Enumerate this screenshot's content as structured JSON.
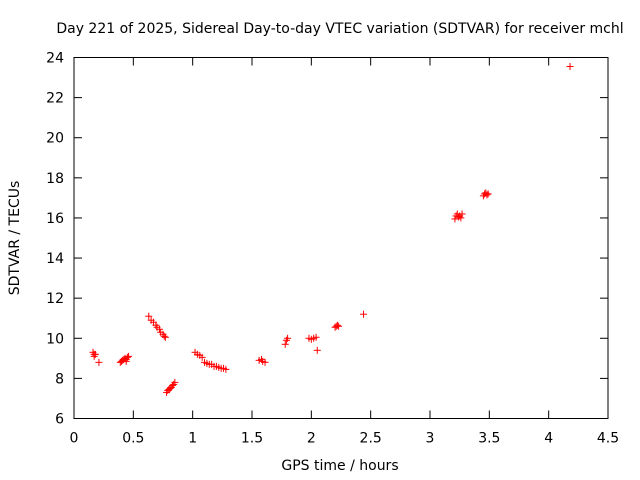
{
  "chart_data": {
    "type": "scatter",
    "title": "Day 221 of 2025, Sidereal Day-to-day VTEC variation (SDTVAR) for receiver mchl",
    "xlabel": "GPS time / hours",
    "ylabel": "SDTVAR / TECUs",
    "xlim": [
      0,
      4.5
    ],
    "ylim": [
      6,
      24
    ],
    "xticks": [
      0,
      0.5,
      1,
      1.5,
      2,
      2.5,
      3,
      3.5,
      4,
      4.5
    ],
    "xtick_labels": [
      "0",
      "0.5",
      "1",
      "1.5",
      "2",
      "2.5",
      "3",
      "3.5",
      "4",
      "4.5"
    ],
    "yticks": [
      6,
      8,
      10,
      12,
      14,
      16,
      18,
      20,
      22,
      24
    ],
    "ytick_labels": [
      "6",
      "8",
      "10",
      "12",
      "14",
      "16",
      "18",
      "20",
      "22",
      "24"
    ],
    "grid": false,
    "marker": "+",
    "marker_color": "#ff0000",
    "series": [
      {
        "name": "SDTVAR",
        "points": [
          [
            0.16,
            9.3
          ],
          [
            0.17,
            9.2
          ],
          [
            0.17,
            9.1
          ],
          [
            0.18,
            9.2
          ],
          [
            0.21,
            8.8
          ],
          [
            0.39,
            8.8
          ],
          [
            0.4,
            8.85
          ],
          [
            0.41,
            8.9
          ],
          [
            0.42,
            8.95
          ],
          [
            0.43,
            9.0
          ],
          [
            0.44,
            8.95
          ],
          [
            0.45,
            9.05
          ],
          [
            0.46,
            9.1
          ],
          [
            0.44,
            8.85
          ],
          [
            0.63,
            11.1
          ],
          [
            0.65,
            10.9
          ],
          [
            0.67,
            10.8
          ],
          [
            0.69,
            10.65
          ],
          [
            0.7,
            10.55
          ],
          [
            0.72,
            10.45
          ],
          [
            0.73,
            10.3
          ],
          [
            0.75,
            10.2
          ],
          [
            0.76,
            10.1
          ],
          [
            0.77,
            10.05
          ],
          [
            0.78,
            7.3
          ],
          [
            0.79,
            7.4
          ],
          [
            0.8,
            7.45
          ],
          [
            0.81,
            7.5
          ],
          [
            0.82,
            7.55
          ],
          [
            0.83,
            7.65
          ],
          [
            0.84,
            7.7
          ],
          [
            0.85,
            7.8
          ],
          [
            1.02,
            9.3
          ],
          [
            1.04,
            9.2
          ],
          [
            1.06,
            9.15
          ],
          [
            1.08,
            9.05
          ],
          [
            1.1,
            8.8
          ],
          [
            1.12,
            8.75
          ],
          [
            1.14,
            8.7
          ],
          [
            1.16,
            8.7
          ],
          [
            1.18,
            8.6
          ],
          [
            1.2,
            8.6
          ],
          [
            1.22,
            8.55
          ],
          [
            1.24,
            8.5
          ],
          [
            1.26,
            8.5
          ],
          [
            1.28,
            8.45
          ],
          [
            1.56,
            8.9
          ],
          [
            1.58,
            8.95
          ],
          [
            1.59,
            8.85
          ],
          [
            1.61,
            8.8
          ],
          [
            1.78,
            9.7
          ],
          [
            1.79,
            9.9
          ],
          [
            1.8,
            10.0
          ],
          [
            1.98,
            10.0
          ],
          [
            2.0,
            9.95
          ],
          [
            2.02,
            10.0
          ],
          [
            2.04,
            10.05
          ],
          [
            2.05,
            9.4
          ],
          [
            2.2,
            10.55
          ],
          [
            2.21,
            10.6
          ],
          [
            2.22,
            10.65
          ],
          [
            2.23,
            10.6
          ],
          [
            2.44,
            11.2
          ],
          [
            3.21,
            15.95
          ],
          [
            3.22,
            16.1
          ],
          [
            3.23,
            16.2
          ],
          [
            3.24,
            16.05
          ],
          [
            3.25,
            16.1
          ],
          [
            3.26,
            16.0
          ],
          [
            3.27,
            16.2
          ],
          [
            3.45,
            17.1
          ],
          [
            3.46,
            17.2
          ],
          [
            3.47,
            17.25
          ],
          [
            3.48,
            17.15
          ],
          [
            3.49,
            17.2
          ],
          [
            4.18,
            23.55
          ]
        ]
      }
    ]
  }
}
